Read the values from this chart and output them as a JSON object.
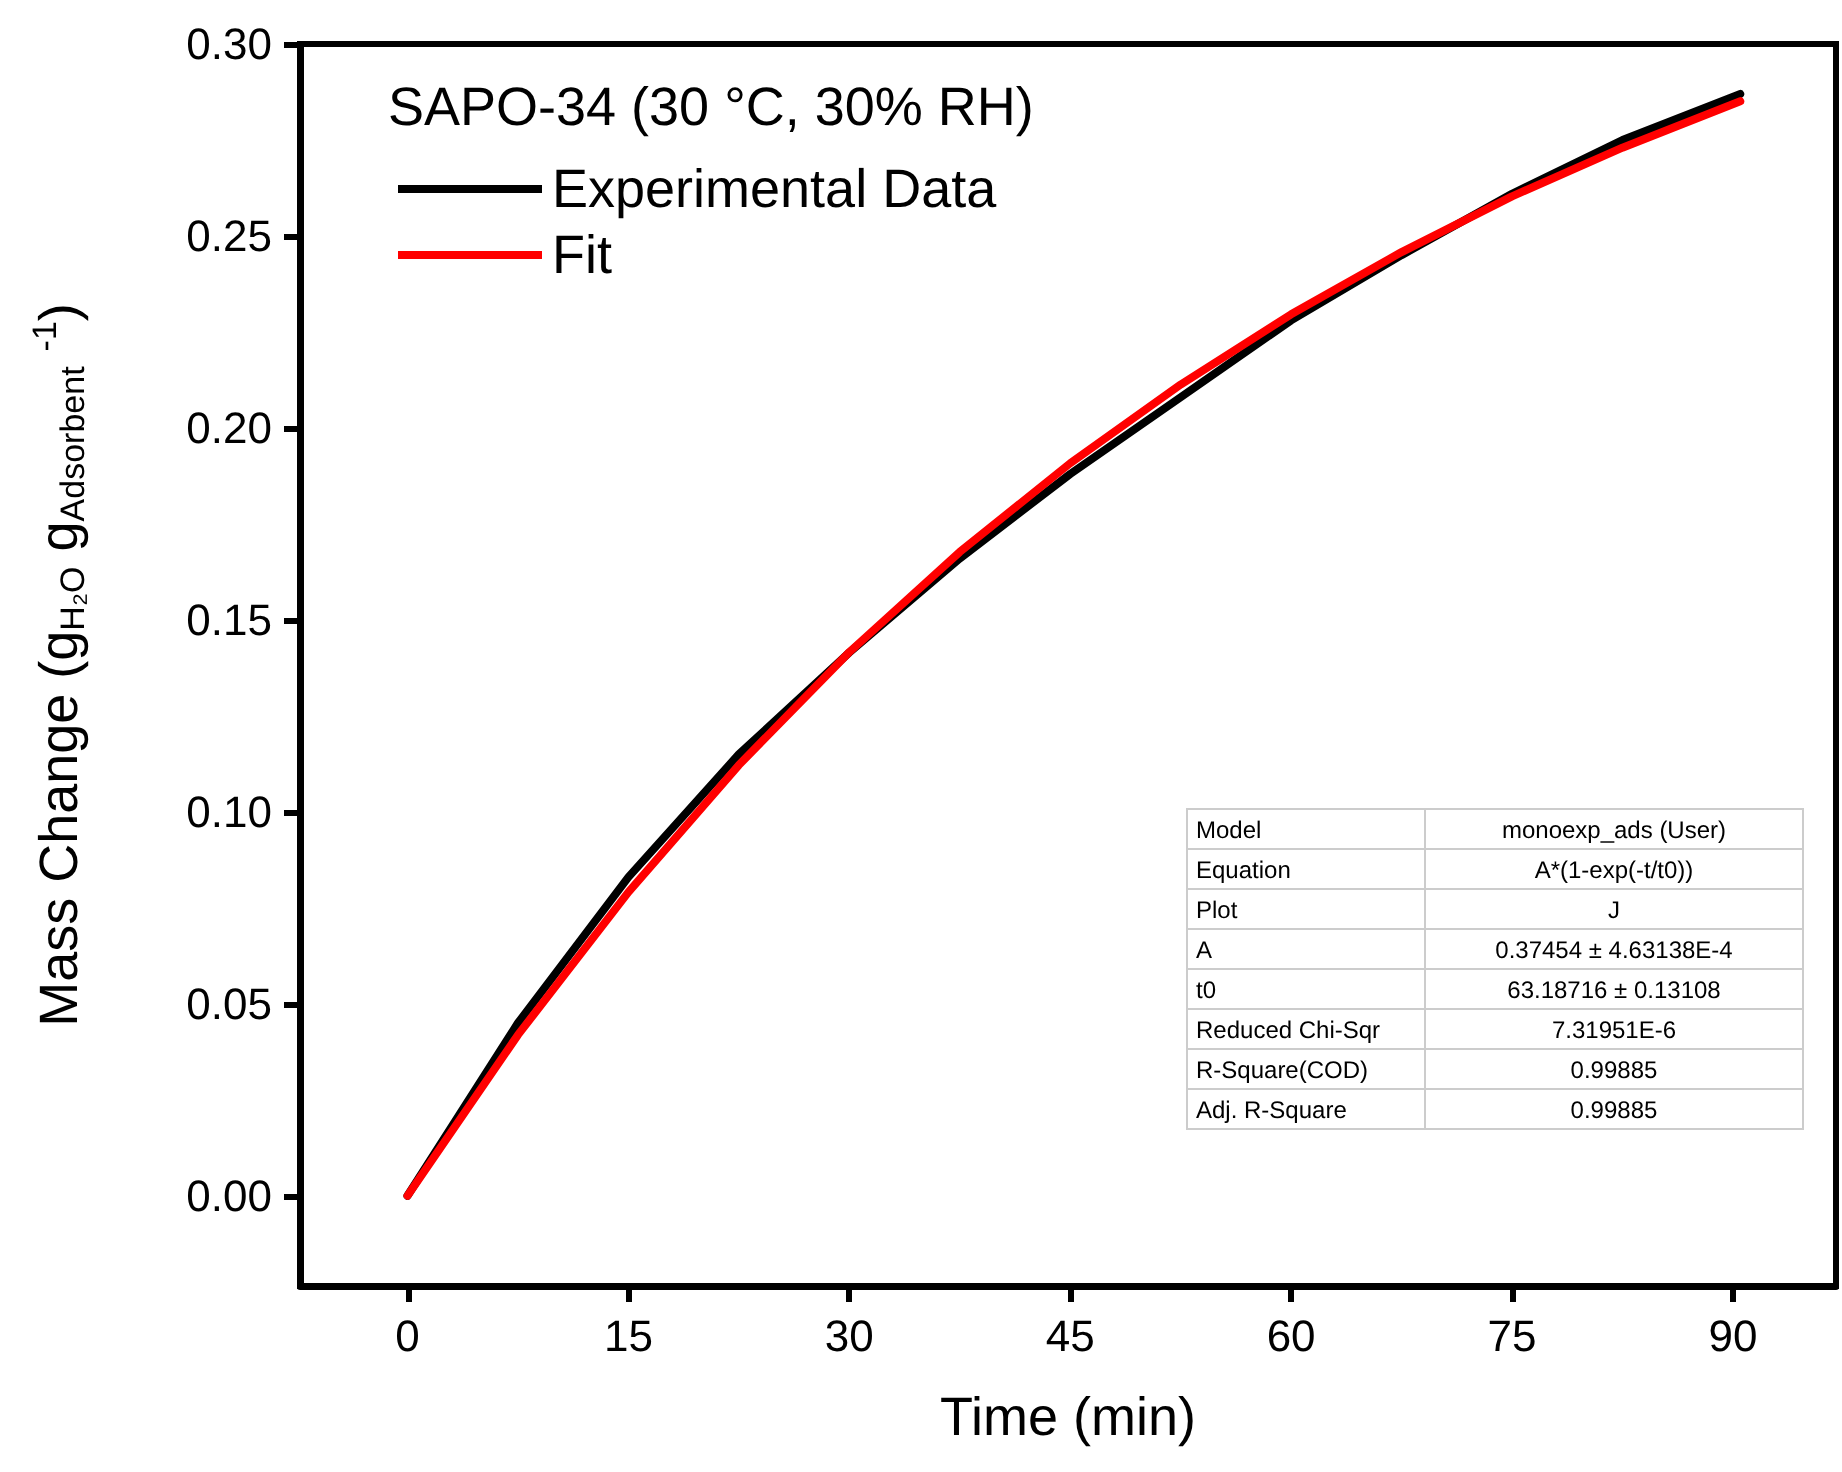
{
  "chart_data": {
    "type": "line",
    "xlabel": "Time (min)",
    "ylabel": "Mass Change (g$_{H₂O}$ g$_{Adsorbent}$ $^{-1}$)",
    "legend_title": "SAPO-34 (30 °C, 30% RH)",
    "xlim": [
      -7.3,
      97
    ],
    "xticks": [
      0,
      15,
      30,
      45,
      60,
      75,
      90
    ],
    "ylim": [
      -0.0235,
      0.3
    ],
    "yticks": [
      {
        "value": 0,
        "label": "0.00"
      },
      {
        "value": 0.05,
        "label": "0.05"
      },
      {
        "value": 0.1,
        "label": "0.10"
      },
      {
        "value": 0.15,
        "label": "0.15"
      },
      {
        "value": 0.2,
        "label": "0.20"
      },
      {
        "value": 0.25,
        "label": "0.25"
      },
      {
        "value": 0.3,
        "label": "0.30"
      }
    ],
    "series": [
      {
        "name": "Experimental Data",
        "color": "#000000",
        "x": [
          0,
          3,
          7.5,
          15,
          22.5,
          30,
          37.5,
          45,
          52.5,
          60,
          67.5,
          75,
          82.5,
          90.5
        ],
        "values": [
          0,
          0.018,
          0.045,
          0.083,
          0.115,
          0.1415,
          0.166,
          0.188,
          0.208,
          0.228,
          0.245,
          0.261,
          0.275,
          0.287
        ]
      },
      {
        "name": "Fit",
        "color": "#ff0000",
        "x": [
          0,
          7.5,
          15,
          22.5,
          30,
          37.5,
          45,
          52.5,
          60,
          67.5,
          75,
          82.5,
          90.5
        ],
        "values": [
          0,
          0.0419,
          0.0791,
          0.1122,
          0.1416,
          0.1677,
          0.1908,
          0.2113,
          0.2296,
          0.2458,
          0.2603,
          0.273,
          0.2851
        ]
      }
    ],
    "legend": "top left",
    "grid": false,
    "marker": "none",
    "line_style": "solid",
    "annotations": [
      "Model",
      "monoexp_ads (User)",
      "Equation",
      "A*(1-exp(-t/t0))",
      "Plot",
      "J",
      "A",
      "0.37454 ± 4.63138E-4",
      "t0",
      "63.18716 ± 0.13108",
      "Reduced Chi-Sqr",
      "7.31951E-6",
      "R-Square(COD)",
      "0.99885",
      "Adj. R-Square",
      "0.99885"
    ]
  }
}
